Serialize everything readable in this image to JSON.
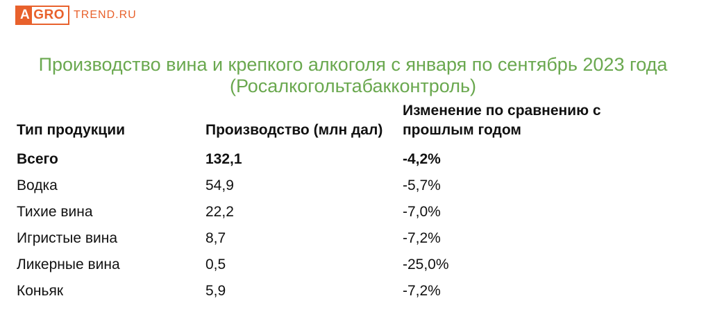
{
  "logo": {
    "letter_a": "A",
    "grow": "GRO",
    "rest": "TREND.RU",
    "color": "#e8612c"
  },
  "title": "Производство вина и крепкого алкоголя с января по сентябрь 2023 года (Росалкогольтабакконтроль)",
  "title_color": "#6aa84f",
  "table": {
    "headers": [
      "Тип продукции",
      "Производство (млн дал)",
      "Изменение по сравнению с прошлым годом"
    ],
    "rows": [
      [
        "Всего",
        "132,1",
        "-4,2%"
      ],
      [
        "Водка",
        "54,9",
        "-5,7%"
      ],
      [
        "Тихие вина",
        "22,2",
        "-7,0%"
      ],
      [
        "Игристые вина",
        "8,7",
        "-7,2%"
      ],
      [
        "Ликерные вина",
        "0,5",
        "-25,0%"
      ],
      [
        "Коньяк",
        "5,9",
        "-7,2%"
      ]
    ]
  }
}
